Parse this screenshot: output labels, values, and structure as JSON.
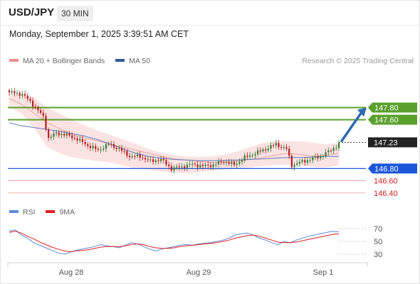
{
  "header": {
    "symbol": "USD/JPY",
    "interval": "30 MIN"
  },
  "datetime": "Monday, September 1, 2025 3:39:51 AM CET",
  "legend": {
    "items": [
      {
        "label": "MA 20 + Bollinger Bands",
        "color": "#f08a8a"
      },
      {
        "label": "MA 50",
        "color": "#2d5a9a"
      }
    ],
    "credit": "Research © 2025 Trading Central"
  },
  "rsi_legend": {
    "items": [
      {
        "label": "RSI",
        "color": "#5b8ad6"
      },
      {
        "label": "9MA",
        "color": "#e02020"
      }
    ]
  },
  "colors": {
    "bullish": "#2e7d32",
    "bearish": "#b71c1c",
    "resistance": "#5aa02c",
    "pivot": "#1a56db",
    "support": "#d22020",
    "current": "#222222",
    "bollinger_fill": "#fbe3e3",
    "ma20": "#f0a0a0",
    "ma50": "#5a7dbb",
    "arrow": "#2e6bb0"
  },
  "chart_data": [
    {
      "type": "candlestick",
      "title": "USD/JPY",
      "interval": "30 MIN",
      "ylim": [
        146.2,
        148.2
      ],
      "x_ticks": [
        "Aug 28",
        "Aug 29",
        "Sep 1"
      ],
      "levels": [
        {
          "value": 147.8,
          "label": "147.80",
          "kind": "resistance"
        },
        {
          "value": 147.6,
          "label": "147.60",
          "kind": "resistance"
        },
        {
          "value": 147.23,
          "label": "147.23",
          "kind": "current"
        },
        {
          "value": 146.8,
          "label": "146.80",
          "kind": "pivot"
        },
        {
          "value": 146.6,
          "label": "146.60",
          "kind": "support"
        },
        {
          "value": 146.4,
          "label": "146.40",
          "kind": "support"
        }
      ],
      "close_anchors": [
        [
          0,
          148.05
        ],
        [
          5,
          148.02
        ],
        [
          8,
          147.9
        ],
        [
          11,
          147.75
        ],
        [
          13,
          147.65
        ],
        [
          15,
          147.3
        ],
        [
          18,
          147.38
        ],
        [
          22,
          147.35
        ],
        [
          26,
          147.28
        ],
        [
          30,
          147.18
        ],
        [
          34,
          147.1
        ],
        [
          38,
          147.2
        ],
        [
          42,
          147.12
        ],
        [
          46,
          147.0
        ],
        [
          50,
          147.0
        ],
        [
          54,
          146.92
        ],
        [
          58,
          146.95
        ],
        [
          62,
          146.8
        ],
        [
          66,
          146.83
        ],
        [
          70,
          146.87
        ],
        [
          74,
          146.84
        ],
        [
          78,
          146.86
        ],
        [
          82,
          146.92
        ],
        [
          86,
          146.86
        ],
        [
          90,
          146.98
        ],
        [
          94,
          147.05
        ],
        [
          98,
          147.12
        ],
        [
          102,
          147.2
        ],
        [
          106,
          147.12
        ],
        [
          108,
          146.85
        ],
        [
          111,
          146.9
        ],
        [
          115,
          146.95
        ],
        [
          119,
          147.0
        ],
        [
          123,
          147.1
        ],
        [
          126,
          147.2
        ]
      ],
      "ma20": [
        147.95,
        147.85,
        147.7,
        147.55,
        147.45,
        147.35,
        147.3,
        147.25,
        147.2,
        147.15,
        147.1,
        147.05,
        147.0,
        146.96,
        146.94,
        146.92,
        146.9,
        146.9,
        146.92,
        146.95,
        146.98,
        147.02,
        147.05,
        147.03,
        147.0,
        147.02,
        147.05
      ],
      "ma50": [
        147.55,
        147.5,
        147.47,
        147.44,
        147.41,
        147.37,
        147.33,
        147.27,
        147.2,
        147.12,
        147.05,
        147.0,
        146.97,
        146.95,
        146.94,
        146.93,
        146.93,
        146.93,
        146.94,
        146.95,
        146.96,
        146.97,
        146.98,
        146.98,
        146.99,
        147.0,
        147.0
      ],
      "bb_upper": [
        148.05,
        148.0,
        147.95,
        147.8,
        147.7,
        147.6,
        147.5,
        147.42,
        147.35,
        147.28,
        147.2,
        147.12,
        147.06,
        147.02,
        147.0,
        146.99,
        147.0,
        147.03,
        147.08,
        147.15,
        147.22,
        147.25,
        147.25,
        147.25,
        147.22,
        147.2,
        147.22
      ],
      "bb_lower": [
        147.8,
        147.7,
        147.45,
        147.15,
        147.05,
        146.98,
        146.95,
        146.92,
        146.9,
        146.85,
        146.8,
        146.78,
        146.75,
        146.73,
        146.72,
        146.74,
        146.76,
        146.78,
        146.8,
        146.82,
        146.84,
        146.86,
        146.86,
        146.85,
        146.82,
        146.82,
        146.85
      ]
    },
    {
      "type": "line",
      "title": "RSI",
      "ylim": [
        20,
        80
      ],
      "y_ticks": [
        70,
        50,
        30
      ],
      "series": [
        {
          "name": "RSI",
          "values": [
            66,
            68,
            60,
            55,
            48,
            44,
            40,
            36,
            32,
            30,
            33,
            36,
            38,
            40,
            42,
            45,
            43,
            42,
            40,
            44,
            48,
            46,
            42,
            38,
            35,
            38,
            40,
            42,
            44,
            45,
            44,
            46,
            47,
            48,
            50,
            52,
            55,
            60,
            62,
            63,
            60,
            55,
            52,
            48,
            45,
            50,
            48,
            52,
            55,
            58,
            60,
            62,
            64,
            66,
            65
          ]
        },
        {
          "name": "9MA",
          "values": [
            64,
            66,
            63,
            58,
            54,
            49,
            45,
            41,
            38,
            35,
            34,
            35,
            36,
            37,
            39,
            41,
            42,
            42,
            42,
            43,
            45,
            46,
            45,
            42,
            40,
            39,
            39,
            40,
            42,
            43,
            44,
            45,
            46,
            47,
            48,
            50,
            52,
            55,
            57,
            59,
            60,
            58,
            55,
            52,
            49,
            48,
            48,
            49,
            51,
            53,
            55,
            57,
            59,
            61,
            62
          ]
        }
      ]
    }
  ]
}
